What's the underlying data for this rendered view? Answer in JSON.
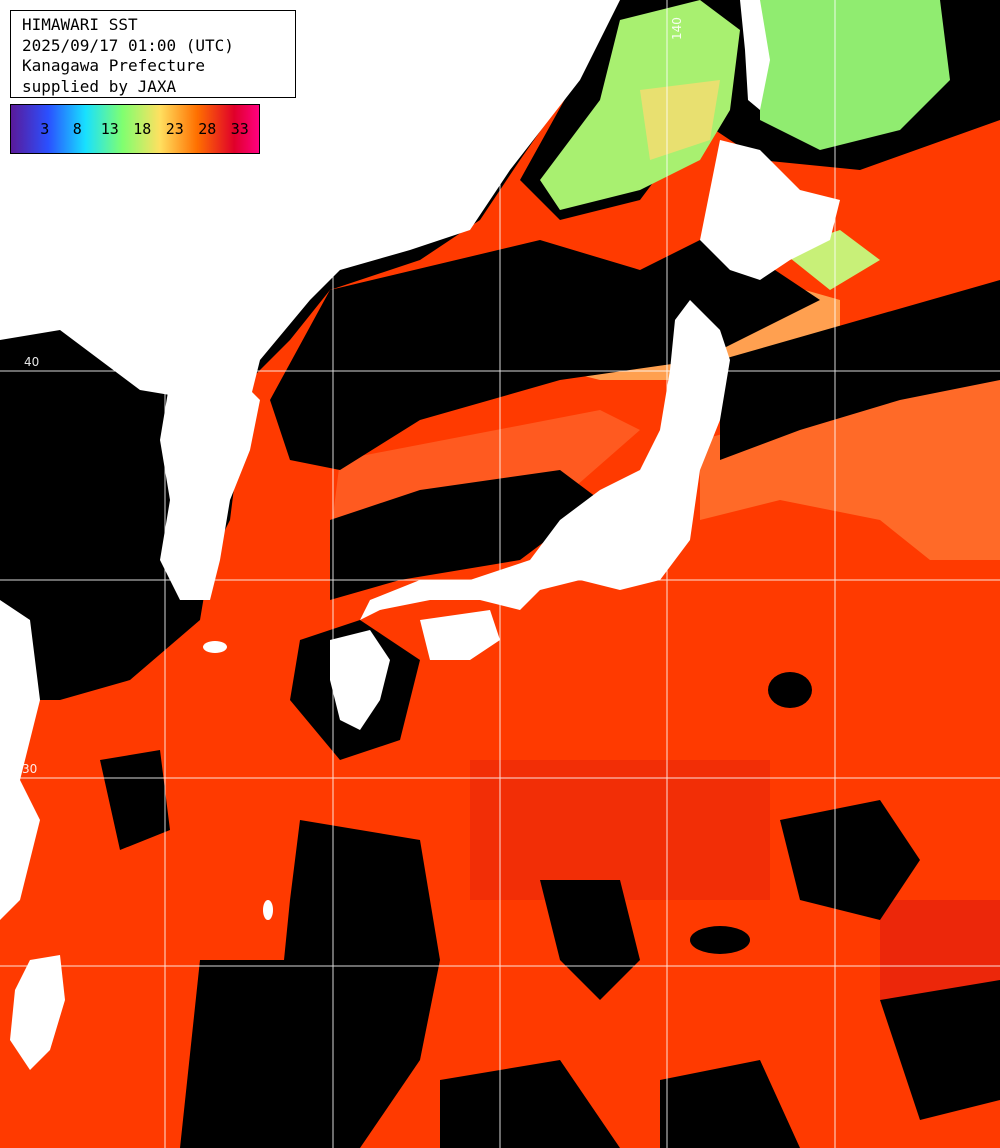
{
  "info": {
    "title": "HIMAWARI SST",
    "datetime": "2025/09/17 01:00 (UTC)",
    "region": "Kanagawa Prefecture",
    "credit": "supplied by JAXA"
  },
  "legend": {
    "ticks": [
      "3",
      "8",
      "13",
      "18",
      "23",
      "28",
      "33"
    ],
    "colors": [
      "#5a1a9a",
      "#2a50ff",
      "#18e0ff",
      "#80ff70",
      "#ffe060",
      "#ff7000",
      "#e0002a",
      "#ff0080"
    ]
  },
  "grid": {
    "labels": [
      "140",
      "40",
      "30"
    ],
    "color": "#ffffff"
  },
  "colors": {
    "land": "#ffffff",
    "cloud": "#000000",
    "sea_warm": "#ff3a00",
    "sea_hot": "#e81a10",
    "sea_mild": "#ff6a28",
    "sea_cool": "#ffa050",
    "sea_cold": "#a8f070"
  }
}
